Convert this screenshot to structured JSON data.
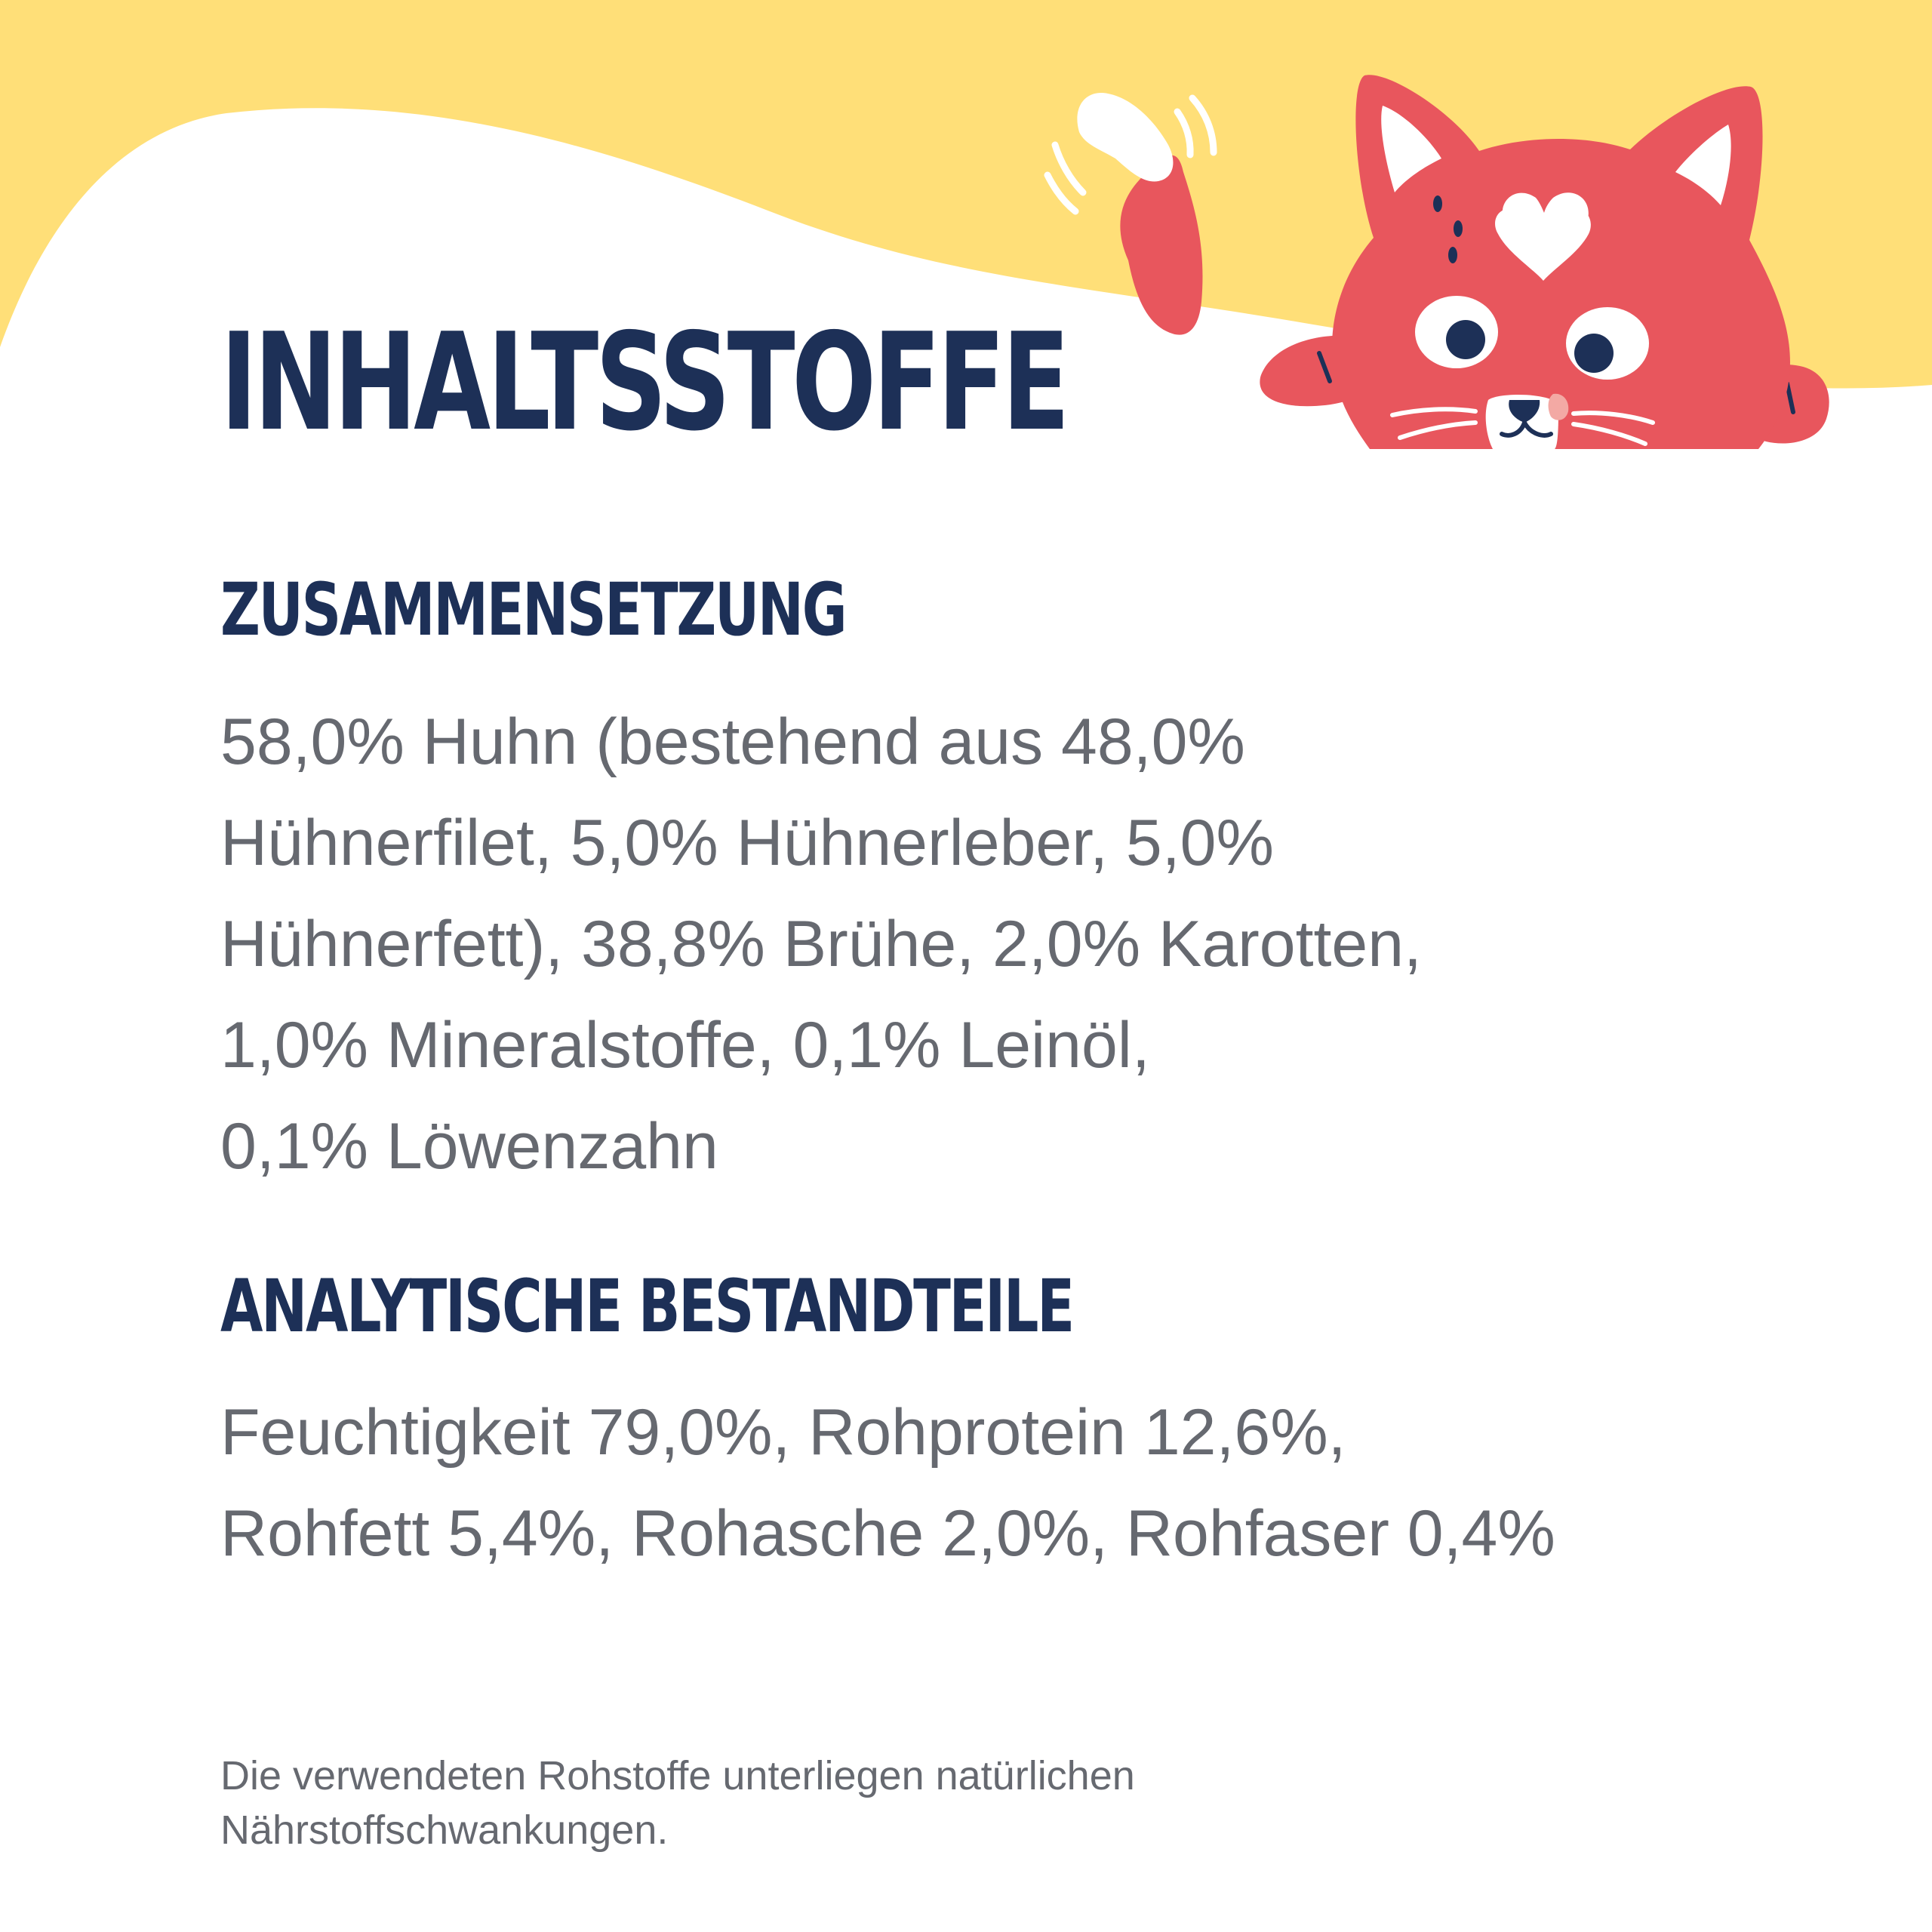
{
  "colors": {
    "background": "#ffffff",
    "yellow_wave": "#ffdf78",
    "cat_red": "#e8565d",
    "navy": "#1d3057",
    "text_gray": "#666970"
  },
  "illustration": {
    "subject": "cat-icon"
  },
  "title": "INHALTSSTOFFE",
  "composition": {
    "heading": "ZUSAMMENSETZUNG",
    "lines": [
      "58,0% Huhn (bestehend aus 48,0%",
      "Hühnerfilet, 5,0% Hühnerleber, 5,0%",
      "Hühnerfett), 38,8% Brühe, 2,0% Karotten,",
      "1,0% Mineralstoffe, 0,1% Leinöl,",
      "0,1% Löwenzahn"
    ]
  },
  "analytical": {
    "heading": "ANALYTISCHE BESTANDTEILE",
    "lines": [
      "Feuchtigkeit 79,0%, Rohprotein 12,6%,",
      "Rohfett 5,4%, Rohasche 2,0%, Rohfaser 0,4%"
    ]
  },
  "footnote": {
    "lines": [
      "Die verwendeten Rohstoffe unterliegen natürlichen",
      "Nährstoffschwankungen."
    ]
  }
}
